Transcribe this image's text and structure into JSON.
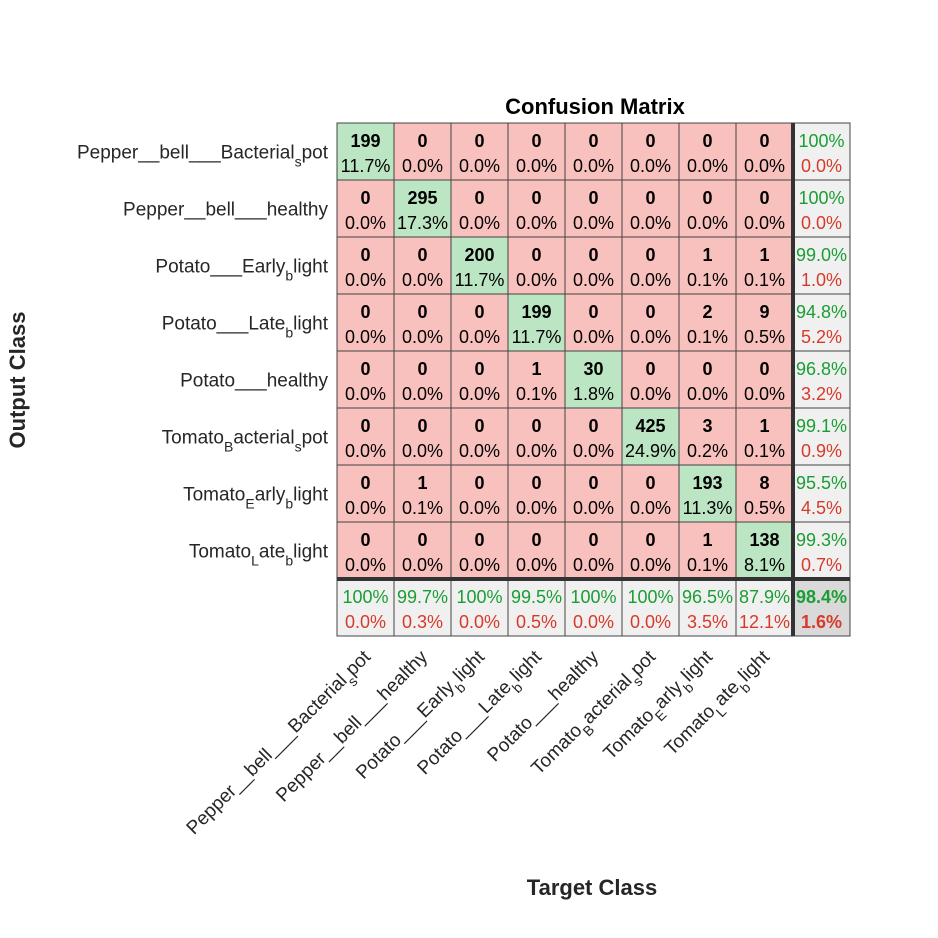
{
  "chart_data": {
    "type": "heatmap",
    "title": "Confusion Matrix",
    "xlabel": "Target Class",
    "ylabel": "Output Class",
    "classes": [
      "Pepper__bell___Bacterial_spot",
      "Pepper__bell___healthy",
      "Potato___Early_blight",
      "Potato___Late_blight",
      "Potato___healthy",
      "Tomato_Bacterial_spot",
      "Tomato_Early_blight",
      "Tomato_Late_blight"
    ],
    "matrix": [
      [
        199,
        0,
        0,
        0,
        0,
        0,
        0,
        0
      ],
      [
        0,
        295,
        0,
        0,
        0,
        0,
        0,
        0
      ],
      [
        0,
        0,
        200,
        0,
        0,
        0,
        1,
        1
      ],
      [
        0,
        0,
        0,
        199,
        0,
        0,
        2,
        9
      ],
      [
        0,
        0,
        0,
        1,
        30,
        0,
        0,
        0
      ],
      [
        0,
        0,
        0,
        0,
        0,
        425,
        3,
        1
      ],
      [
        0,
        1,
        0,
        0,
        0,
        0,
        193,
        8
      ],
      [
        0,
        0,
        0,
        0,
        0,
        0,
        1,
        138
      ]
    ],
    "cell_percentages": [
      [
        "11.7%",
        "0.0%",
        "0.0%",
        "0.0%",
        "0.0%",
        "0.0%",
        "0.0%",
        "0.0%"
      ],
      [
        "0.0%",
        "17.3%",
        "0.0%",
        "0.0%",
        "0.0%",
        "0.0%",
        "0.0%",
        "0.0%"
      ],
      [
        "0.0%",
        "0.0%",
        "11.7%",
        "0.0%",
        "0.0%",
        "0.0%",
        "0.1%",
        "0.1%"
      ],
      [
        "0.0%",
        "0.0%",
        "0.0%",
        "11.7%",
        "0.0%",
        "0.0%",
        "0.1%",
        "0.5%"
      ],
      [
        "0.0%",
        "0.0%",
        "0.0%",
        "0.1%",
        "1.8%",
        "0.0%",
        "0.0%",
        "0.0%"
      ],
      [
        "0.0%",
        "0.0%",
        "0.0%",
        "0.0%",
        "0.0%",
        "24.9%",
        "0.2%",
        "0.1%"
      ],
      [
        "0.0%",
        "0.1%",
        "0.0%",
        "0.0%",
        "0.0%",
        "0.0%",
        "11.3%",
        "0.5%"
      ],
      [
        "0.0%",
        "0.0%",
        "0.0%",
        "0.0%",
        "0.0%",
        "0.0%",
        "0.1%",
        "8.1%"
      ]
    ],
    "row_summary": [
      [
        "100%",
        "0.0%"
      ],
      [
        "100%",
        "0.0%"
      ],
      [
        "99.0%",
        "1.0%"
      ],
      [
        "94.8%",
        "5.2%"
      ],
      [
        "96.8%",
        "3.2%"
      ],
      [
        "99.1%",
        "0.9%"
      ],
      [
        "95.5%",
        "4.5%"
      ],
      [
        "99.3%",
        "0.7%"
      ]
    ],
    "col_summary": [
      [
        "100%",
        "0.0%"
      ],
      [
        "99.7%",
        "0.3%"
      ],
      [
        "100%",
        "0.0%"
      ],
      [
        "99.5%",
        "0.5%"
      ],
      [
        "100%",
        "0.0%"
      ],
      [
        "100%",
        "0.0%"
      ],
      [
        "96.5%",
        "3.5%"
      ],
      [
        "87.9%",
        "12.1%"
      ]
    ],
    "overall": [
      "98.4%",
      "1.6%"
    ],
    "colors": {
      "diagonal": "#bce5c3",
      "off_diagonal": "#f8c1bd",
      "summary": "#f0f0f0",
      "overall": "#d9d9d9",
      "green_text": "#1a9e33",
      "red_text": "#d73a2a",
      "grid": "#444444"
    }
  }
}
